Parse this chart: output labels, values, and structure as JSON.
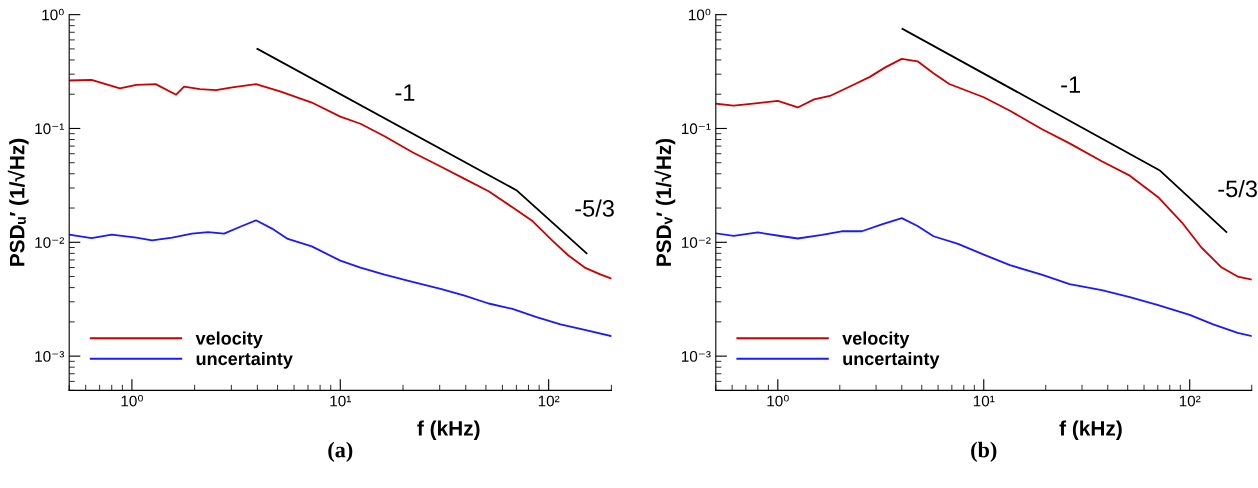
{
  "chart_data": [
    {
      "type": "line",
      "title": "(a)",
      "xlabel": "f (kHz)",
      "ylabel": "PSDᵤ′ (1/√Hz)",
      "log": "xy",
      "grid": false,
      "legend": "bottom left",
      "marker": "none",
      "line_style": "solid",
      "xlim": [
        0.5,
        200
      ],
      "ylim": [
        0.0005,
        1
      ],
      "xticks": [
        {
          "value": 1,
          "label": "10⁰"
        },
        {
          "value": 10,
          "label": "10¹"
        },
        {
          "value": 100,
          "label": "10²"
        }
      ],
      "yticks": [
        {
          "value": 0.001,
          "label": "10⁻³"
        },
        {
          "value": 0.01,
          "label": "10⁻²"
        },
        {
          "value": 0.1,
          "label": "10⁻¹"
        },
        {
          "value": 1,
          "label": "10⁰"
        }
      ],
      "series": [
        {
          "name": "velocity",
          "color": "#cc0000",
          "x": [
            0.5,
            0.64,
            0.876,
            1.05,
            1.3,
            1.63,
            1.78,
            2.12,
            2.53,
            3.03,
            3.94,
            5.14,
            7.3,
            10,
            12.5,
            16.3,
            22.2,
            30.3,
            39.5,
            51.5,
            67,
            83.9,
            104.5,
            124,
            149,
            178,
            200
          ],
          "values": [
            0.264,
            0.267,
            0.225,
            0.242,
            0.245,
            0.198,
            0.233,
            0.222,
            0.217,
            0.23,
            0.245,
            0.212,
            0.169,
            0.127,
            0.11,
            0.0854,
            0.0618,
            0.0464,
            0.0361,
            0.0281,
            0.0203,
            0.0153,
            0.0103,
            0.0077,
            0.006,
            0.0052,
            0.0048
          ]
        },
        {
          "name": "uncertainty",
          "color": "#1a1aff",
          "x": [
            0.5,
            0.64,
            0.8,
            1.05,
            1.25,
            1.56,
            1.94,
            2.32,
            2.77,
            3.31,
            3.94,
            4.7,
            5.6,
            7.3,
            10,
            12.5,
            16.3,
            22.2,
            30.3,
            39.5,
            51.5,
            67,
            87.5,
            114,
            149,
            200
          ],
          "values": [
            0.0117,
            0.0109,
            0.0117,
            0.011,
            0.0104,
            0.011,
            0.0119,
            0.0123,
            0.0119,
            0.0137,
            0.0156,
            0.0132,
            0.0107,
            0.0092,
            0.0069,
            0.006,
            0.0052,
            0.0045,
            0.0039,
            0.0034,
            0.0029,
            0.0026,
            0.0022,
            0.0019,
            0.0017,
            0.0015
          ]
        },
        {
          "color": "#000000",
          "x": [
            4,
            70,
            152
          ],
          "values": [
            0.5,
            0.0287,
            0.008
          ]
        }
      ],
      "annotations": [
        {
          "text": "-1",
          "x": 16.6,
          "y": 0.12
        },
        {
          "text": "-5/3",
          "x": 121,
          "y": 0.0115
        }
      ]
    },
    {
      "type": "line",
      "title": "(b)",
      "xlabel": "f (kHz)",
      "ylabel": "PSDᵥ′ (1/√Hz)",
      "log": "xy",
      "grid": false,
      "legend": "bottom left",
      "marker": "none",
      "line_style": "solid",
      "xlim": [
        0.5,
        200
      ],
      "ylim": [
        0.0005,
        1
      ],
      "xticks": [
        {
          "value": 1,
          "label": "10⁰"
        },
        {
          "value": 10,
          "label": "10¹"
        },
        {
          "value": 100,
          "label": "10²"
        }
      ],
      "yticks": [
        {
          "value": 0.001,
          "label": "10⁻³"
        },
        {
          "value": 0.01,
          "label": "10⁻²"
        },
        {
          "value": 0.1,
          "label": "10⁻¹"
        },
        {
          "value": 1,
          "label": "10⁰"
        }
      ],
      "series": [
        {
          "name": "velocity",
          "color": "#cc0000",
          "x": [
            0.5,
            0.61,
            0.8,
            1.0,
            1.25,
            1.5,
            1.79,
            2.24,
            2.8,
            3.34,
            4.0,
            4.77,
            5.7,
            6.8,
            10,
            13.4,
            19.1,
            26.1,
            37.4,
            51.2,
            70.3,
            91.5,
            114,
            143,
            171,
            200
          ],
          "values": [
            0.165,
            0.159,
            0.167,
            0.175,
            0.153,
            0.18,
            0.193,
            0.234,
            0.284,
            0.346,
            0.409,
            0.389,
            0.306,
            0.246,
            0.188,
            0.143,
            0.099,
            0.074,
            0.0515,
            0.0385,
            0.0249,
            0.015,
            0.009,
            0.006,
            0.005,
            0.0047
          ]
        },
        {
          "name": "uncertainty",
          "color": "#1a1aff",
          "x": [
            0.5,
            0.61,
            0.8,
            1.05,
            1.25,
            1.64,
            2.04,
            2.56,
            3.2,
            4.0,
            4.77,
            5.7,
            7.5,
            10,
            13.4,
            19.1,
            26.1,
            37.4,
            51.2,
            70.3,
            100,
            130,
            171,
            200
          ],
          "values": [
            0.012,
            0.0114,
            0.0122,
            0.0113,
            0.0108,
            0.0116,
            0.0125,
            0.0125,
            0.0144,
            0.0163,
            0.0139,
            0.0113,
            0.0097,
            0.0078,
            0.0063,
            0.0052,
            0.0043,
            0.0038,
            0.0033,
            0.0028,
            0.0023,
            0.0019,
            0.0016,
            0.0015
          ]
        },
        {
          "color": "#000000",
          "x": [
            4.03,
            71.3,
            150.7
          ],
          "values": [
            0.75,
            0.043,
            0.0123
          ]
        }
      ],
      "annotations": [
        {
          "text": "-1",
          "x": 21.4,
          "y": 0.141
        },
        {
          "text": "-5/3",
          "x": 124,
          "y": 0.0171
        }
      ]
    }
  ]
}
